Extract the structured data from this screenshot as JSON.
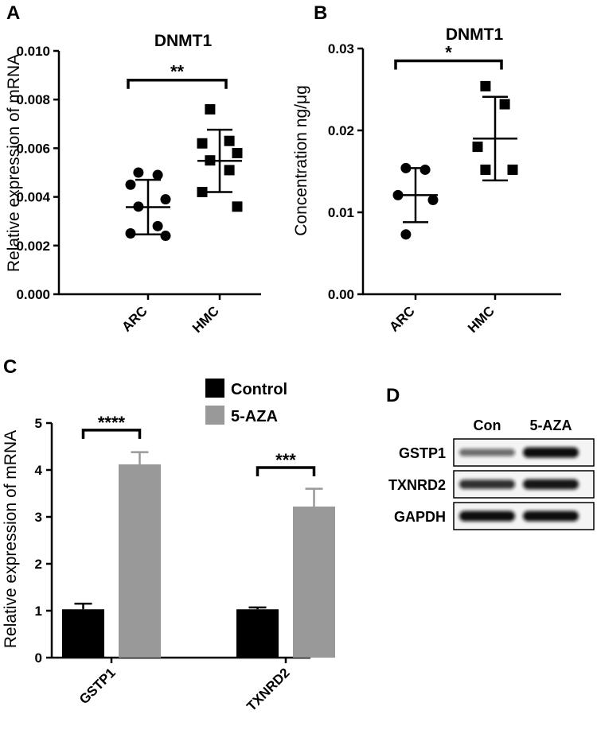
{
  "panels": {
    "a": "A",
    "b": "B",
    "c": "C",
    "d": "D"
  },
  "chart_data": [
    {
      "type": "scatter",
      "panel": "A",
      "title": "DNMT1",
      "ylabel": "Relative expression of mRNA",
      "xlabel": "",
      "ylim": [
        0,
        0.01
      ],
      "yticks": [
        "0.000",
        "0.002",
        "0.004",
        "0.006",
        "0.008",
        "0.010"
      ],
      "ytick_values": [
        0,
        0.002,
        0.004,
        0.006,
        0.008,
        0.01
      ],
      "categories": [
        "ARC",
        "HMC"
      ],
      "series": [
        {
          "name": "ARC",
          "marker": "circle",
          "mean": 0.00358,
          "sd": 0.00112,
          "values": [
            0.005,
            0.0049,
            0.0045,
            0.0039,
            0.0036,
            0.0028,
            0.0025,
            0.0024
          ]
        },
        {
          "name": "HMC",
          "marker": "square",
          "mean": 0.00548,
          "sd": 0.00128,
          "values": [
            0.0076,
            0.0063,
            0.0062,
            0.0058,
            0.0055,
            0.0051,
            0.0042,
            0.0036
          ]
        }
      ],
      "significance": [
        {
          "from": "ARC",
          "to": "HMC",
          "label": "**",
          "y": 0.0088
        }
      ]
    },
    {
      "type": "scatter",
      "panel": "B",
      "title": "DNMT1",
      "ylabel": "Concentration ng/μg",
      "xlabel": "",
      "ylim": [
        0,
        0.03
      ],
      "yticks": [
        "0.00",
        "0.01",
        "0.02",
        "0.03"
      ],
      "ytick_values": [
        0,
        0.01,
        0.02,
        0.03
      ],
      "categories": [
        "ARC",
        "HMC"
      ],
      "series": [
        {
          "name": "ARC",
          "marker": "circle",
          "mean": 0.0121,
          "sd": 0.0033,
          "values": [
            0.0154,
            0.0152,
            0.0121,
            0.0115,
            0.0073
          ]
        },
        {
          "name": "HMC",
          "marker": "square",
          "mean": 0.019,
          "sd": 0.0051,
          "values": [
            0.0254,
            0.0232,
            0.018,
            0.0152,
            0.0152
          ]
        }
      ],
      "significance": [
        {
          "from": "ARC",
          "to": "HMC",
          "label": "*",
          "y": 0.0285
        }
      ]
    },
    {
      "type": "bar",
      "panel": "C",
      "title": "",
      "ylabel": "Relative expression of mRNA",
      "xlabel": "",
      "ylim": [
        0,
        5
      ],
      "yticks": [
        "0",
        "1",
        "2",
        "3",
        "4",
        "5"
      ],
      "ytick_values": [
        0,
        1,
        2,
        3,
        4,
        5
      ],
      "categories": [
        "GSTP1",
        "TXNRD2"
      ],
      "series": [
        {
          "name": "Control",
          "color": "#000000",
          "values": [
            1.03,
            1.03
          ],
          "errors": [
            0.12,
            0.04
          ]
        },
        {
          "name": "5-AZA",
          "color": "#999999",
          "values": [
            4.12,
            3.22
          ],
          "errors": [
            0.26,
            0.38
          ]
        }
      ],
      "significance": [
        {
          "category": "GSTP1",
          "label": "****",
          "y": 4.85
        },
        {
          "category": "TXNRD2",
          "label": "***",
          "y": 4.05
        }
      ],
      "legend": [
        "Control",
        "5-AZA"
      ]
    }
  ],
  "blot": {
    "columns": [
      "Con",
      "5-AZA"
    ],
    "rows": [
      {
        "label": "GSTP1",
        "intensities": [
          0.45,
          1.0
        ]
      },
      {
        "label": "TXNRD2",
        "intensities": [
          0.8,
          0.95
        ]
      },
      {
        "label": "GAPDH",
        "intensities": [
          1.0,
          1.0
        ]
      }
    ]
  }
}
